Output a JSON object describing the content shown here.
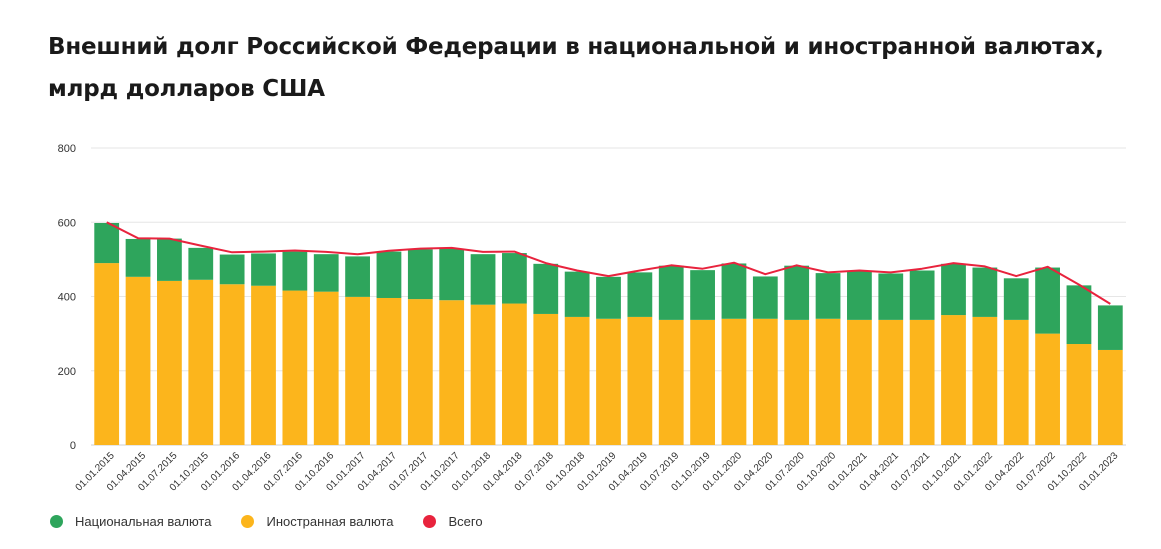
{
  "title": "Внешний долг Российской Федерации в национальной и иностранной валютах, млрд долларов США",
  "colors": {
    "national": "#2ea55c",
    "foreign": "#fcb51c",
    "total": "#e8233d",
    "grid": "#e6e6e6"
  },
  "chart_data": {
    "type": "bar",
    "stacked": true,
    "title": "Внешний долг Российской Федерации в национальной и иностранной валютах, млрд долларов США",
    "categories": [
      "01.01.2015",
      "01.04.2015",
      "01.07.2015",
      "01.10.2015",
      "01.01.2016",
      "01.04.2016",
      "01.07.2016",
      "01.10.2016",
      "01.01.2017",
      "01.04.2017",
      "01.07.2017",
      "01.10.2017",
      "01.01.2018",
      "01.04.2018",
      "01.07.2018",
      "01.10.2018",
      "01.01.2019",
      "01.04.2019",
      "01.07.2019",
      "01.10.2019",
      "01.01.2020",
      "01.04.2020",
      "01.07.2020",
      "01.10.2020",
      "01.01.2021",
      "01.04.2021",
      "01.07.2021",
      "01.10.2021",
      "01.01.2022",
      "01.04.2022",
      "01.07.2022",
      "01.10.2022",
      "01.01.2023"
    ],
    "series": [
      {
        "name": "Иностранная валюта",
        "kind": "bar",
        "values": [
          490,
          453,
          442,
          445,
          433,
          429,
          416,
          413,
          399,
          396,
          393,
          390,
          378,
          381,
          353,
          345,
          340,
          345,
          337,
          337,
          340,
          340,
          337,
          340,
          337,
          337,
          337,
          350,
          345,
          337,
          300,
          272,
          256
        ]
      },
      {
        "name": "Национальная валюта",
        "kind": "bar",
        "values": [
          108,
          102,
          114,
          86,
          80,
          87,
          105,
          101,
          109,
          125,
          134,
          138,
          136,
          136,
          135,
          122,
          113,
          120,
          146,
          134,
          149,
          114,
          146,
          123,
          131,
          125,
          133,
          138,
          133,
          112,
          178,
          158,
          120
        ]
      },
      {
        "name": "Всего",
        "kind": "line",
        "values": [
          600,
          557,
          556,
          537,
          519,
          521,
          524,
          520,
          514,
          523,
          529,
          531,
          520,
          521,
          490,
          470,
          455,
          470,
          484,
          475,
          491,
          460,
          484,
          465,
          470,
          465,
          475,
          490,
          481,
          455,
          480,
          432,
          380
        ]
      }
    ],
    "ylim": [
      0,
      800
    ],
    "yticks": [
      0,
      200,
      400,
      600,
      800
    ],
    "xlabel": "",
    "ylabel": "",
    "grid": true,
    "legend_position": "bottom-left"
  },
  "legend": [
    {
      "label": "Национальная валюта",
      "color": "#2ea55c"
    },
    {
      "label": "Иностранная валюта",
      "color": "#fcb51c"
    },
    {
      "label": "Всего",
      "color": "#e8233d"
    }
  ]
}
